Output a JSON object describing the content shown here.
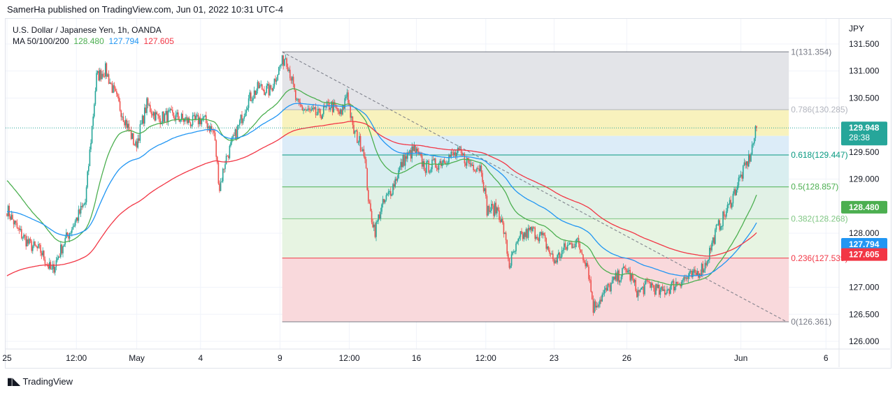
{
  "header": {
    "published": "SamerHa published on TradingView.com, Jun 01, 2022 10:31 UTC-4"
  },
  "legend": {
    "symbol": "U.S. Dollar / Japanese Yen, 1h, OANDA",
    "ma_label": "MA 50/100/200",
    "ma50": "128.480",
    "ma100": "127.794",
    "ma200": "127.605"
  },
  "footer": {
    "brand": "TradingView"
  },
  "colors": {
    "up": "#26a69a",
    "down": "#ef5350",
    "ma50": "#4caf50",
    "ma100": "#2196f3",
    "ma200": "#f23645"
  },
  "chart_data": {
    "type": "candlestick",
    "currency": "JPY",
    "ylim": [
      126.0,
      131.5
    ],
    "y_ticks": [
      "131.500",
      "131.000",
      "130.500",
      "129.500",
      "129.000",
      "128.000",
      "127.000",
      "126.500",
      "126.000"
    ],
    "x_ticks": [
      {
        "bar": 0,
        "label": "25"
      },
      {
        "bar": 62,
        "label": "12:00"
      },
      {
        "bar": 116,
        "label": "May"
      },
      {
        "bar": 173,
        "label": "4"
      },
      {
        "bar": 244,
        "label": "9"
      },
      {
        "bar": 306,
        "label": "12:00"
      },
      {
        "bar": 366,
        "label": "16"
      },
      {
        "bar": 428,
        "label": "12:00"
      },
      {
        "bar": 489,
        "label": "23"
      },
      {
        "bar": 554,
        "label": "26"
      },
      {
        "bar": 656,
        "label": "Jun"
      },
      {
        "bar": 732,
        "label": "6"
      }
    ],
    "close_path": [
      [
        0,
        128.44
      ],
      [
        10,
        128.05
      ],
      [
        20,
        127.79
      ],
      [
        30,
        127.67
      ],
      [
        40,
        127.28
      ],
      [
        50,
        127.79
      ],
      [
        60,
        128.18
      ],
      [
        70,
        128.57
      ],
      [
        75,
        129.73
      ],
      [
        80,
        130.89
      ],
      [
        88,
        131.02
      ],
      [
        95,
        130.63
      ],
      [
        105,
        130.12
      ],
      [
        115,
        129.6
      ],
      [
        125,
        130.38
      ],
      [
        135,
        130.12
      ],
      [
        145,
        130.18
      ],
      [
        155,
        130.12
      ],
      [
        165,
        130.05
      ],
      [
        175,
        130.12
      ],
      [
        185,
        129.86
      ],
      [
        190,
        128.83
      ],
      [
        195,
        129.34
      ],
      [
        205,
        129.86
      ],
      [
        215,
        130.44
      ],
      [
        225,
        130.7
      ],
      [
        235,
        130.63
      ],
      [
        244,
        131.09
      ],
      [
        249,
        131.28
      ],
      [
        254,
        130.89
      ],
      [
        259,
        130.38
      ],
      [
        269,
        130.25
      ],
      [
        279,
        130.18
      ],
      [
        289,
        130.38
      ],
      [
        299,
        130.18
      ],
      [
        304,
        130.63
      ],
      [
        309,
        129.92
      ],
      [
        319,
        129.54
      ],
      [
        324,
        128.44
      ],
      [
        329,
        128.05
      ],
      [
        334,
        128.44
      ],
      [
        344,
        128.83
      ],
      [
        354,
        129.34
      ],
      [
        364,
        129.54
      ],
      [
        374,
        129.21
      ],
      [
        384,
        129.28
      ],
      [
        394,
        129.41
      ],
      [
        404,
        129.47
      ],
      [
        414,
        129.28
      ],
      [
        424,
        129.21
      ],
      [
        429,
        128.44
      ],
      [
        439,
        128.44
      ],
      [
        444,
        128.05
      ],
      [
        449,
        127.41
      ],
      [
        459,
        127.92
      ],
      [
        469,
        128.05
      ],
      [
        479,
        127.92
      ],
      [
        489,
        127.47
      ],
      [
        499,
        127.73
      ],
      [
        509,
        127.86
      ],
      [
        519,
        127.41
      ],
      [
        524,
        126.63
      ],
      [
        534,
        126.89
      ],
      [
        544,
        127.15
      ],
      [
        554,
        127.34
      ],
      [
        564,
        126.89
      ],
      [
        574,
        127.08
      ],
      [
        584,
        126.89
      ],
      [
        594,
        127.02
      ],
      [
        604,
        127.15
      ],
      [
        614,
        127.21
      ],
      [
        624,
        127.41
      ],
      [
        634,
        128.05
      ],
      [
        644,
        128.44
      ],
      [
        654,
        128.96
      ],
      [
        664,
        129.41
      ],
      [
        670,
        129.948
      ]
    ],
    "fib": [
      {
        "ratio": "1",
        "price": 131.354,
        "label": "1(131.354)",
        "color": "#787b86"
      },
      {
        "ratio": "0.786",
        "price": 130.285,
        "label": "0.786(130.285)",
        "color": "#b2b5be"
      },
      {
        "ratio": "0.618",
        "price": 129.447,
        "label": "0.618(129.447)",
        "color": "#089981"
      },
      {
        "ratio": "0.5",
        "price": 128.857,
        "label": "0.5(128.857)",
        "color": "#4caf50"
      },
      {
        "ratio": "0.382",
        "price": 128.268,
        "label": "0.382(128.268)",
        "color": "#81c784"
      },
      {
        "ratio": "0.236",
        "price": 127.539,
        "label": "0.236(127.539)",
        "color": "#f23645"
      },
      {
        "ratio": "0",
        "price": 126.361,
        "label": "0(126.361)",
        "color": "#787b86"
      }
    ],
    "fib_range_bars": [
      246,
      697
    ],
    "trendline": [
      [
        246,
        131.354
      ],
      [
        697,
        126.361
      ]
    ],
    "last_price": {
      "value": "129.948",
      "countdown": "28:38"
    },
    "ma_tags": [
      {
        "value": "128.480",
        "color": "#4caf50"
      },
      {
        "value": "127.794",
        "color": "#2196f3"
      },
      {
        "value": "127.605",
        "color": "#f23645"
      }
    ]
  }
}
